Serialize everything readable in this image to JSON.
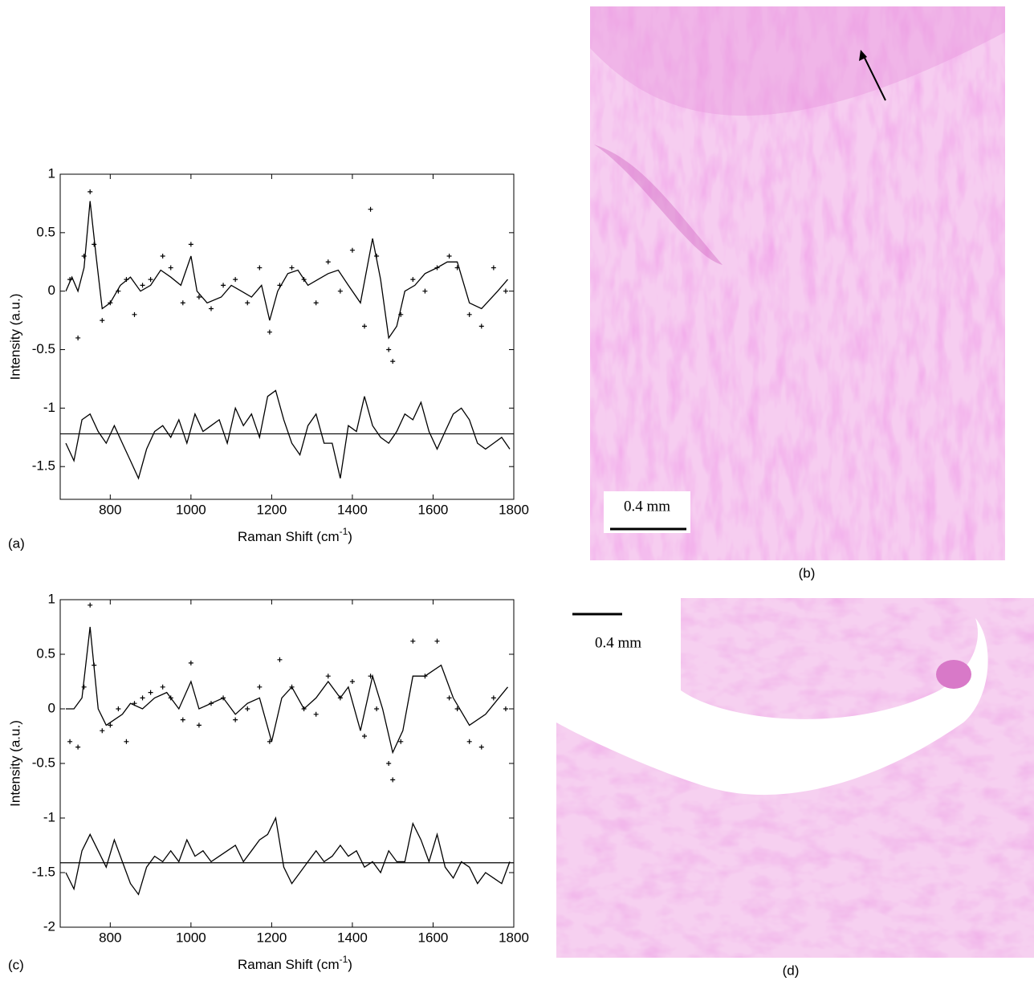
{
  "chart_data": [
    {
      "type": "line",
      "panel_label": "(a)",
      "ylabel": "Intensity (a.u.)",
      "xlabel": [
        "Raman Shift (cm",
        "-1",
        ")"
      ],
      "xlim": [
        676,
        1800
      ],
      "ylim": [
        -1.78,
        1
      ],
      "xticks": [
        800,
        1000,
        1200,
        1400,
        1600,
        1800
      ],
      "yticks": [
        -1.5,
        -1,
        -0.5,
        0,
        0.5,
        1
      ],
      "reference_line": -1.22,
      "series": [
        {
          "style": "line",
          "color": "#000000",
          "x": [
            690,
            705,
            720,
            735,
            750,
            765,
            780,
            800,
            825,
            850,
            875,
            900,
            925,
            950,
            975,
            1000,
            1015,
            1040,
            1075,
            1100,
            1125,
            1150,
            1175,
            1195,
            1215,
            1240,
            1265,
            1290,
            1315,
            1340,
            1365,
            1390,
            1420,
            1450,
            1470,
            1490,
            1510,
            1530,
            1555,
            1580,
            1610,
            1635,
            1660,
            1690,
            1720,
            1760,
            1785
          ],
          "values": [
            0.0,
            0.12,
            0.0,
            0.2,
            0.77,
            0.3,
            -0.15,
            -0.1,
            0.05,
            0.12,
            0.0,
            0.05,
            0.18,
            0.12,
            0.05,
            0.3,
            0.0,
            -0.1,
            -0.05,
            0.05,
            0.0,
            -0.05,
            0.05,
            -0.25,
            0.0,
            0.15,
            0.18,
            0.05,
            0.1,
            0.15,
            0.18,
            0.05,
            -0.1,
            0.45,
            0.1,
            -0.4,
            -0.3,
            0.0,
            0.05,
            0.15,
            0.2,
            0.25,
            0.25,
            -0.1,
            -0.15,
            0.0,
            0.1
          ]
        },
        {
          "style": "markers",
          "color": "#000000",
          "x": [
            700,
            720,
            735,
            750,
            760,
            780,
            800,
            820,
            840,
            860,
            880,
            900,
            930,
            950,
            980,
            1000,
            1020,
            1050,
            1080,
            1110,
            1140,
            1170,
            1195,
            1220,
            1250,
            1280,
            1310,
            1340,
            1370,
            1400,
            1430,
            1445,
            1460,
            1490,
            1500,
            1520,
            1550,
            1580,
            1610,
            1640,
            1660,
            1690,
            1720,
            1750,
            1780
          ],
          "values": [
            0.1,
            -0.4,
            0.3,
            0.85,
            0.4,
            -0.25,
            -0.1,
            0.0,
            0.1,
            -0.2,
            0.05,
            0.1,
            0.3,
            0.2,
            -0.1,
            0.4,
            -0.05,
            -0.15,
            0.05,
            0.1,
            -0.1,
            0.2,
            -0.35,
            0.05,
            0.2,
            0.1,
            -0.1,
            0.25,
            0.0,
            0.35,
            -0.3,
            0.7,
            0.3,
            -0.5,
            -0.6,
            -0.2,
            0.1,
            0.0,
            0.2,
            0.3,
            0.2,
            -0.2,
            -0.3,
            0.2,
            0.0
          ]
        },
        {
          "style": "line",
          "color": "#000000",
          "x": [
            690,
            710,
            730,
            750,
            770,
            790,
            810,
            830,
            850,
            870,
            890,
            910,
            930,
            950,
            970,
            990,
            1010,
            1030,
            1050,
            1070,
            1090,
            1110,
            1130,
            1150,
            1170,
            1190,
            1210,
            1230,
            1250,
            1270,
            1290,
            1310,
            1330,
            1350,
            1370,
            1390,
            1410,
            1430,
            1450,
            1470,
            1490,
            1510,
            1530,
            1550,
            1570,
            1590,
            1610,
            1630,
            1650,
            1670,
            1690,
            1710,
            1730,
            1750,
            1770,
            1790
          ],
          "values": [
            -1.3,
            -1.45,
            -1.1,
            -1.05,
            -1.2,
            -1.3,
            -1.15,
            -1.3,
            -1.45,
            -1.6,
            -1.35,
            -1.2,
            -1.15,
            -1.25,
            -1.1,
            -1.3,
            -1.05,
            -1.2,
            -1.15,
            -1.1,
            -1.3,
            -1.0,
            -1.15,
            -1.05,
            -1.25,
            -0.9,
            -0.85,
            -1.1,
            -1.3,
            -1.4,
            -1.15,
            -1.05,
            -1.3,
            -1.3,
            -1.6,
            -1.15,
            -1.2,
            -0.9,
            -1.15,
            -1.25,
            -1.3,
            -1.2,
            -1.05,
            -1.1,
            -0.95,
            -1.2,
            -1.35,
            -1.2,
            -1.05,
            -1.0,
            -1.1,
            -1.3,
            -1.35,
            -1.3,
            -1.25,
            -1.35
          ]
        }
      ]
    },
    {
      "type": "line",
      "panel_label": "(c)",
      "ylabel": "Intensity (a.u.)",
      "xlabel": [
        "Raman Shift (cm",
        "-1",
        ")"
      ],
      "xlim": [
        676,
        1800
      ],
      "ylim": [
        -2,
        1
      ],
      "xticks": [
        800,
        1000,
        1200,
        1400,
        1600,
        1800
      ],
      "yticks": [
        -2,
        -1.5,
        -1,
        -0.5,
        0,
        0.5,
        1
      ],
      "reference_line": -1.41,
      "series": [
        {
          "style": "line",
          "color": "#000000",
          "x": [
            690,
            710,
            730,
            750,
            770,
            790,
            810,
            830,
            850,
            880,
            910,
            940,
            970,
            1000,
            1020,
            1050,
            1080,
            1110,
            1140,
            1170,
            1200,
            1225,
            1250,
            1280,
            1310,
            1340,
            1370,
            1390,
            1420,
            1450,
            1475,
            1500,
            1525,
            1550,
            1580,
            1620,
            1650,
            1690,
            1730,
            1785
          ],
          "values": [
            0.0,
            0.0,
            0.1,
            0.75,
            0.0,
            -0.15,
            -0.1,
            -0.05,
            0.05,
            0.0,
            0.1,
            0.15,
            0.0,
            0.25,
            0.0,
            0.05,
            0.1,
            -0.05,
            0.05,
            0.1,
            -0.3,
            0.1,
            0.2,
            0.0,
            0.1,
            0.25,
            0.1,
            0.2,
            -0.2,
            0.3,
            0.0,
            -0.4,
            -0.2,
            0.3,
            0.3,
            0.4,
            0.1,
            -0.15,
            -0.05,
            0.2
          ]
        },
        {
          "style": "markers",
          "color": "#000000",
          "x": [
            700,
            720,
            735,
            750,
            760,
            780,
            800,
            820,
            840,
            860,
            880,
            900,
            930,
            950,
            980,
            1000,
            1020,
            1050,
            1080,
            1110,
            1140,
            1170,
            1195,
            1220,
            1250,
            1280,
            1310,
            1340,
            1370,
            1400,
            1430,
            1445,
            1460,
            1490,
            1500,
            1520,
            1550,
            1580,
            1610,
            1640,
            1660,
            1690,
            1720,
            1750,
            1780
          ],
          "values": [
            -0.3,
            -0.35,
            0.2,
            0.95,
            0.4,
            -0.2,
            -0.15,
            0.0,
            -0.3,
            0.05,
            0.1,
            0.15,
            0.2,
            0.1,
            -0.1,
            0.42,
            -0.15,
            0.05,
            0.1,
            -0.1,
            0.0,
            0.2,
            -0.3,
            0.45,
            0.2,
            0.0,
            -0.05,
            0.3,
            0.1,
            0.25,
            -0.25,
            0.3,
            0.0,
            -0.5,
            -0.65,
            -0.3,
            0.62,
            0.3,
            0.62,
            0.1,
            0.0,
            -0.3,
            -0.35,
            0.1,
            0.0
          ]
        },
        {
          "style": "line",
          "color": "#000000",
          "x": [
            690,
            710,
            730,
            750,
            770,
            790,
            810,
            830,
            850,
            870,
            890,
            910,
            930,
            950,
            970,
            990,
            1010,
            1030,
            1050,
            1070,
            1090,
            1110,
            1130,
            1150,
            1170,
            1190,
            1210,
            1230,
            1250,
            1270,
            1290,
            1310,
            1330,
            1350,
            1370,
            1390,
            1410,
            1430,
            1450,
            1470,
            1490,
            1510,
            1530,
            1550,
            1570,
            1590,
            1610,
            1630,
            1650,
            1670,
            1690,
            1710,
            1730,
            1750,
            1770,
            1790
          ],
          "values": [
            -1.5,
            -1.65,
            -1.3,
            -1.15,
            -1.3,
            -1.45,
            -1.2,
            -1.4,
            -1.6,
            -1.7,
            -1.45,
            -1.35,
            -1.4,
            -1.3,
            -1.4,
            -1.2,
            -1.35,
            -1.3,
            -1.4,
            -1.35,
            -1.3,
            -1.25,
            -1.4,
            -1.3,
            -1.2,
            -1.15,
            -1.0,
            -1.45,
            -1.6,
            -1.5,
            -1.4,
            -1.3,
            -1.4,
            -1.35,
            -1.25,
            -1.35,
            -1.3,
            -1.45,
            -1.4,
            -1.5,
            -1.3,
            -1.4,
            -1.4,
            -1.05,
            -1.2,
            -1.4,
            -1.15,
            -1.45,
            -1.55,
            -1.4,
            -1.45,
            -1.6,
            -1.5,
            -1.55,
            -1.6,
            -1.4
          ]
        }
      ]
    }
  ],
  "images": [
    {
      "panel_label": "(b)",
      "scale_label": "0.4 mm"
    },
    {
      "panel_label": "(d)",
      "scale_label": "0.4 mm"
    }
  ]
}
